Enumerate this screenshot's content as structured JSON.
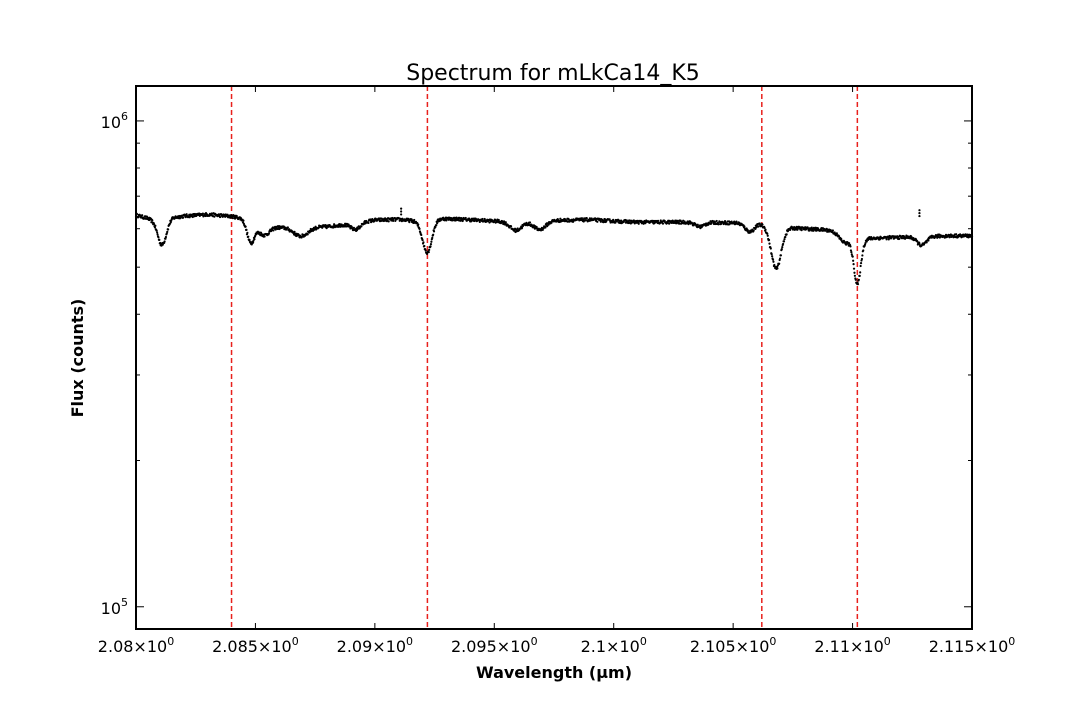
{
  "chart_data": {
    "type": "scatter",
    "title": "Spectrum for mLkCa14_K5",
    "xlabel": "Wavelength (μm)",
    "ylabel": "Flux (counts)",
    "xlim": [
      2.08,
      2.115
    ],
    "ylim": [
      90000,
      1180000
    ],
    "yscale": "log",
    "grid": false,
    "x_ticks": [
      {
        "value": 2.08,
        "base": "2.08",
        "suffix": "×10",
        "exp": "0"
      },
      {
        "value": 2.085,
        "base": "2.085",
        "suffix": "×10",
        "exp": "0"
      },
      {
        "value": 2.09,
        "base": "2.09",
        "suffix": "×10",
        "exp": "0"
      },
      {
        "value": 2.095,
        "base": "2.095",
        "suffix": "×10",
        "exp": "0"
      },
      {
        "value": 2.1,
        "base": "2.1",
        "suffix": "×10",
        "exp": "0"
      },
      {
        "value": 2.105,
        "base": "2.105",
        "suffix": "×10",
        "exp": "0"
      },
      {
        "value": 2.11,
        "base": "2.11",
        "suffix": "×10",
        "exp": "0"
      },
      {
        "value": 2.115,
        "base": "2.115",
        "suffix": "×10",
        "exp": "0"
      }
    ],
    "y_ticks": [
      {
        "value": 100000,
        "base": "10",
        "exp": "5"
      },
      {
        "value": 1000000,
        "base": "10",
        "exp": "6"
      }
    ],
    "reference_lines": {
      "color": "#e8211d",
      "style": "dashed",
      "x": [
        2.084,
        2.0922,
        2.1062,
        2.1102
      ]
    },
    "series": [
      {
        "color": "#000000",
        "x_start": 2.08,
        "x_end": 2.115,
        "baseline": [
          [
            2.08,
            640000
          ],
          [
            2.0805,
            630000
          ],
          [
            2.081,
            615000
          ],
          [
            2.0815,
            632000
          ],
          [
            2.082,
            637000
          ],
          [
            2.083,
            642000
          ],
          [
            2.084,
            636000
          ],
          [
            2.085,
            625000
          ],
          [
            2.0855,
            607000
          ],
          [
            2.086,
            604000
          ],
          [
            2.087,
            603000
          ],
          [
            2.088,
            606000
          ],
          [
            2.089,
            614000
          ],
          [
            2.09,
            625000
          ],
          [
            2.091,
            627000
          ],
          [
            2.092,
            620000
          ],
          [
            2.0925,
            630000
          ],
          [
            2.0935,
            628000
          ],
          [
            2.095,
            622000
          ],
          [
            2.096,
            620000
          ],
          [
            2.0975,
            624000
          ],
          [
            2.099,
            626000
          ],
          [
            2.1,
            622000
          ],
          [
            2.101,
            619000
          ],
          [
            2.103,
            619000
          ],
          [
            2.105,
            617000
          ],
          [
            2.106,
            616000
          ],
          [
            2.1068,
            605000
          ],
          [
            2.108,
            600000
          ],
          [
            2.109,
            596000
          ],
          [
            2.1098,
            590000
          ],
          [
            2.1105,
            572000
          ],
          [
            2.111,
            574000
          ],
          [
            2.112,
            576000
          ],
          [
            2.113,
            578000
          ],
          [
            2.114,
            580000
          ],
          [
            2.115,
            580000
          ]
        ],
        "dips": [
          {
            "x": 2.0811,
            "depth": 0.9,
            "width": 0.00018
          },
          {
            "x": 2.0848,
            "depth": 0.9,
            "width": 0.00016
          },
          {
            "x": 2.0853,
            "depth": 0.95,
            "width": 0.00025
          },
          {
            "x": 2.0869,
            "depth": 0.96,
            "width": 0.0003
          },
          {
            "x": 2.0892,
            "depth": 0.97,
            "width": 0.0002
          },
          {
            "x": 2.0922,
            "depth": 0.86,
            "width": 0.0002
          },
          {
            "x": 2.0959,
            "depth": 0.96,
            "width": 0.00025
          },
          {
            "x": 2.0969,
            "depth": 0.96,
            "width": 0.00025
          },
          {
            "x": 2.1036,
            "depth": 0.98,
            "width": 0.0002
          },
          {
            "x": 2.1057,
            "depth": 0.96,
            "width": 0.0002
          },
          {
            "x": 2.1068,
            "depth": 0.82,
            "width": 0.00022
          },
          {
            "x": 2.1097,
            "depth": 0.95,
            "width": 0.00025
          },
          {
            "x": 2.1102,
            "depth": 0.8,
            "width": 0.00015
          },
          {
            "x": 2.1129,
            "depth": 0.96,
            "width": 0.0002
          }
        ],
        "spikes": [
          {
            "x": 2.0911,
            "value": 660000
          },
          {
            "x": 2.1128,
            "value": 655000
          }
        ],
        "noise_fraction": 0.008
      }
    ]
  }
}
